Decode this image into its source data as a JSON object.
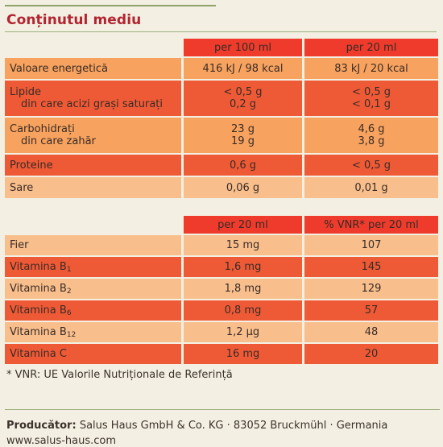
{
  "title": "Conținutul mediu",
  "table1": {
    "headers": [
      "",
      "per 100 ml",
      "per 20 ml"
    ],
    "rows": [
      {
        "label": "Valoare energetică",
        "v1": "416 kJ / 98 kcal",
        "v2": "83 kJ / 20 kcal"
      },
      {
        "label": "Lipide",
        "sub_label": "din care acizi grași saturați",
        "v1": "< 0,5 g",
        "v1_sub": "0,2 g",
        "v2": "< 0,5 g",
        "v2_sub": "< 0,1 g"
      },
      {
        "label": "Carbohidrați",
        "sub_label": "din care zahăr",
        "v1": "23 g",
        "v1_sub": "19 g",
        "v2": "4,6 g",
        "v2_sub": "3,8 g"
      },
      {
        "label": "Proteine",
        "v1": "0,6 g",
        "v2": "< 0,5 g"
      },
      {
        "label": "Sare",
        "v1": "0,06 g",
        "v2": "0,01 g"
      }
    ]
  },
  "table2": {
    "headers": [
      "",
      "per 20 ml",
      "% VNR* per 20 ml"
    ],
    "rows": [
      {
        "label": "Fier",
        "sub": "",
        "v1": "15 mg",
        "v2": "107"
      },
      {
        "label": "Vitamina B",
        "sub": "1",
        "v1": "1,6 mg",
        "v2": "145"
      },
      {
        "label": "Vitamina B",
        "sub": "2",
        "v1": "1,8 mg",
        "v2": "129"
      },
      {
        "label": "Vitamina B",
        "sub": "6",
        "v1": "0,8 mg",
        "v2": "57"
      },
      {
        "label": "Vitamina B",
        "sub": "12",
        "v1": "1,2 µg",
        "v2": "48"
      },
      {
        "label": "Vitamina C",
        "sub": "",
        "v1": "16 mg",
        "v2": "20"
      }
    ]
  },
  "footnote": "* VNR: UE Valorile Nutriționale de Referință",
  "producer": {
    "label": "Producător:",
    "text": "Salus Haus GmbH & Co. KG · 83052 Bruckmühl · Germania"
  },
  "website": "www.salus-haus.com",
  "colors": {
    "title": "#b32431",
    "header": "#ee3b2c",
    "row_orange": "#f7a35f",
    "row_red": "#ef5a36",
    "row_peach": "#f8bf8d",
    "background": "#f3efe2",
    "rule": "#9db07e"
  }
}
